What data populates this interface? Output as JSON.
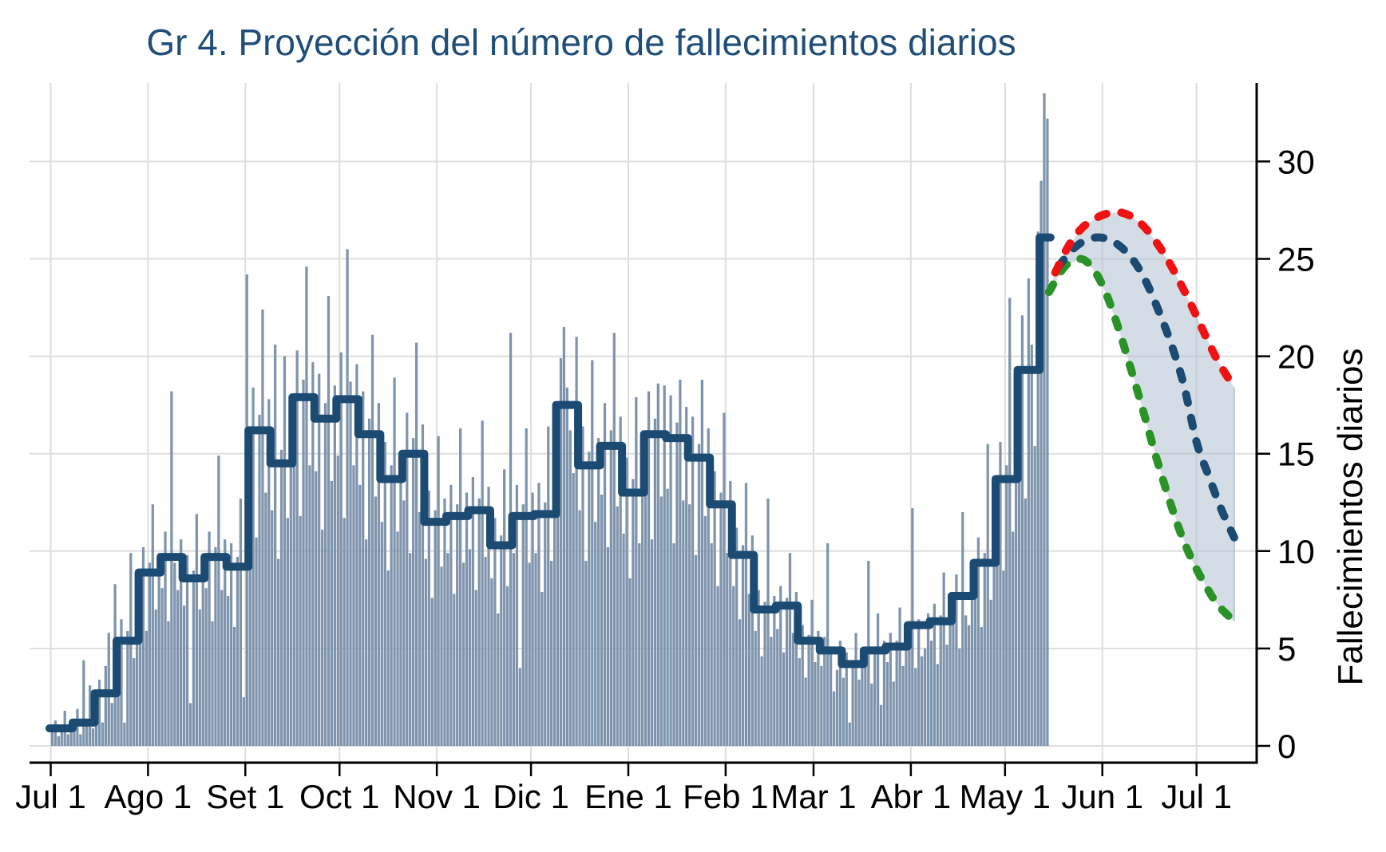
{
  "page": {
    "background": "#FFFFFF"
  },
  "chart_data": {
    "type": "bar",
    "title": "Gr 4. Proyección del número de fallecimientos diarios",
    "ylabel": "Fallecimientos diarios",
    "xlabel": "",
    "ylim": [
      0,
      34
    ],
    "yticks": [
      0,
      5,
      10,
      15,
      20,
      25,
      30
    ],
    "grid": true,
    "legend": false,
    "x_axis": {
      "tick_labels": [
        "Jul 1",
        "Ago 1",
        "Set 1",
        "Oct 1",
        "Nov 1",
        "Dic 1",
        "Ene 1",
        "Feb 1",
        "Mar 1",
        "Abr 1",
        "May 1",
        "Jun 1",
        "Jul 1"
      ],
      "tick_days": [
        0,
        31,
        62,
        92,
        123,
        153,
        184,
        215,
        243,
        274,
        304,
        335,
        365
      ]
    },
    "bars": {
      "name": "fallecimientos-diarios-observados",
      "start_day": 0,
      "values": [
        0.8,
        1.3,
        0.5,
        1.1,
        1.8,
        0.6,
        1.0,
        1.0,
        1.9,
        0.6,
        4.4,
        1.2,
        3.1,
        0.9,
        1.8,
        3.4,
        1.2,
        4.1,
        5.8,
        2.2,
        8.3,
        4.0,
        6.5,
        1.2,
        5.9,
        9.9,
        4.5,
        6.2,
        7.5,
        10.2,
        5.9,
        9.4,
        12.4,
        7.0,
        9.9,
        8.1,
        11.0,
        6.4,
        18.2,
        9.4,
        8.0,
        10.6,
        7.2,
        9.8,
        2.2,
        9.0,
        11.9,
        7.0,
        9.4,
        8.1,
        11.0,
        6.4,
        10.2,
        14.9,
        8.0,
        10.6,
        7.7,
        10.4,
        6.1,
        9.7,
        12.7,
        2.5,
        24.2,
        13.5,
        18.4,
        10.7,
        17.0,
        22.4,
        13.0,
        17.8,
        12.1,
        20.6,
        9.6,
        15.2,
        20.0,
        11.7,
        15.9,
        15.0,
        20.3,
        11.8,
        18.8,
        24.6,
        14.4,
        19.7,
        14.1,
        19.1,
        11.1,
        17.6,
        23.1,
        13.6,
        18.5,
        14.9,
        20.2,
        11.7,
        25.5,
        18.7,
        14.4,
        19.6,
        13.4,
        18.2,
        10.6,
        16.8,
        21.1,
        12.8,
        17.6,
        11.5,
        15.6,
        9.0,
        14.4,
        18.9,
        11.0,
        15.1,
        12.6,
        17.1,
        9.9,
        15.8,
        20.7,
        12.0,
        16.5,
        9.6,
        13.1,
        7.6,
        12.1,
        15.9,
        9.2,
        12.7,
        9.9,
        13.4,
        7.8,
        12.4,
        16.3,
        9.4,
        13.0,
        10.1,
        13.8,
        8.0,
        12.7,
        16.7,
        9.7,
        13.3,
        8.6,
        11.7,
        6.8,
        10.8,
        14.2,
        8.2,
        21.2,
        9.9,
        13.4,
        4.0,
        12.4,
        16.3,
        9.4,
        13.0,
        9.9,
        13.5,
        7.9,
        12.5,
        16.4,
        9.5,
        13.1,
        14.6,
        19.9,
        21.5,
        18.4,
        16.2,
        14.0,
        21.0,
        12.1,
        16.4,
        9.5,
        15.1,
        19.8,
        11.5,
        15.8,
        12.9,
        17.6,
        10.2,
        16.2,
        21.2,
        12.3,
        16.9,
        10.9,
        14.8,
        8.6,
        13.7,
        17.9,
        10.4,
        14.3,
        13.4,
        18.2,
        10.6,
        16.8,
        18.6,
        12.8,
        18.5,
        13.2,
        18.0,
        10.4,
        16.6,
        18.8,
        12.6,
        17.4,
        12.4,
        16.9,
        9.8,
        15.5,
        18.8,
        11.8,
        16.3,
        10.4,
        14.1,
        8.2,
        13.0,
        17.1,
        9.9,
        13.6,
        8.2,
        11.2,
        6.5,
        10.3,
        13.5,
        7.8,
        10.8,
        5.9,
        8.0,
        4.6,
        7.4,
        12.7,
        5.6,
        7.7,
        6.0,
        8.2,
        4.8,
        7.6,
        9.9,
        5.8,
        7.9,
        4.5,
        6.2,
        3.5,
        5.7,
        7.5,
        4.3,
        5.9,
        4.1,
        5.6,
        10.4,
        5.1,
        2.8,
        3.9,
        5.4,
        3.5,
        4.8,
        1.2,
        4.4,
        5.8,
        3.4,
        4.6,
        4.1,
        9.5,
        3.2,
        5.1,
        6.8,
        2.1,
        5.4,
        4.3,
        5.8,
        3.3,
        5.4,
        7.1,
        4.1,
        5.6,
        5.2,
        12.2,
        4.0,
        6.5,
        4.6,
        5.0,
        6.8,
        5.4,
        7.3,
        4.2,
        6.7,
        8.9,
        5.2,
        7.0,
        6.5,
        8.8,
        5.0,
        12.0,
        6.7,
        6.2,
        8.5,
        7.9,
        10.7,
        6.1,
        9.9,
        15.5,
        7.5,
        10.3,
        11.5,
        15.6,
        9.0,
        14.4,
        23.0,
        11.0,
        15.1,
        16.2,
        22.1,
        12.7,
        24.0,
        20.6,
        15.4,
        26.4,
        29.0,
        33.5,
        32.2
      ]
    },
    "moving_average_step": {
      "name": "promedio-movil-7-dias",
      "week_length_days": 7,
      "values": [
        0.9,
        1.2,
        2.7,
        5.4,
        8.9,
        9.7,
        8.6,
        9.7,
        9.2,
        16.2,
        14.5,
        17.9,
        16.8,
        17.8,
        16.0,
        13.7,
        15.0,
        11.5,
        11.8,
        12.1,
        10.3,
        11.8,
        11.9,
        17.5,
        14.4,
        15.4,
        13.0,
        16.0,
        15.8,
        14.8,
        12.4,
        9.8,
        7.0,
        7.2,
        5.4,
        4.9,
        4.2,
        4.9,
        5.1,
        6.2,
        6.4,
        7.7,
        9.4,
        13.7,
        19.3,
        26.1
      ]
    },
    "projections": {
      "upper": {
        "name": "proyeccion-superior",
        "color_name": "red",
        "points": [
          [
            320,
            24.3
          ],
          [
            324,
            25.6
          ],
          [
            328,
            26.5
          ],
          [
            332,
            27.0
          ],
          [
            336,
            27.3
          ],
          [
            340,
            27.4
          ],
          [
            344,
            27.2
          ],
          [
            348,
            26.7
          ],
          [
            352,
            25.9
          ],
          [
            356,
            24.9
          ],
          [
            360,
            23.7
          ],
          [
            364,
            22.4
          ],
          [
            368,
            21.0
          ],
          [
            372,
            19.7
          ],
          [
            377,
            18.4
          ]
        ]
      },
      "central": {
        "name": "proyeccion-central",
        "color_name": "navy",
        "points": [
          [
            321,
            24.6
          ],
          [
            325,
            25.4
          ],
          [
            329,
            25.9
          ],
          [
            333,
            26.1
          ],
          [
            337,
            26.0
          ],
          [
            341,
            25.6
          ],
          [
            345,
            24.9
          ],
          [
            349,
            23.8
          ],
          [
            353,
            22.3
          ],
          [
            357,
            20.6
          ],
          [
            361,
            18.5
          ],
          [
            365,
            15.6
          ],
          [
            369,
            13.8
          ],
          [
            373,
            12.1
          ],
          [
            377,
            10.7
          ]
        ]
      },
      "lower": {
        "name": "proyeccion-inferior",
        "color_name": "green",
        "points": [
          [
            318,
            23.3
          ],
          [
            323,
            24.6
          ],
          [
            328,
            25.0
          ],
          [
            332,
            24.5
          ],
          [
            336,
            23.3
          ],
          [
            340,
            21.5
          ],
          [
            344,
            19.4
          ],
          [
            348,
            17.2
          ],
          [
            352,
            14.9
          ],
          [
            356,
            12.8
          ],
          [
            360,
            10.9
          ],
          [
            364,
            9.4
          ],
          [
            368,
            8.2
          ],
          [
            372,
            7.2
          ],
          [
            377,
            6.4
          ]
        ]
      },
      "band_between": [
        "upper",
        "lower"
      ]
    },
    "colors": {
      "title": "#1F4E79",
      "bar": "#7E94AC",
      "step_line": "#1B4A73",
      "projection_red": "#EF1212",
      "projection_navy": "#1B4A73",
      "projection_green": "#2A9327",
      "band_fill": "rgba(176,193,207,0.55)",
      "band_edge": "#BCC8D2",
      "grid": "#DEDEDE",
      "axis": "#000000"
    }
  }
}
